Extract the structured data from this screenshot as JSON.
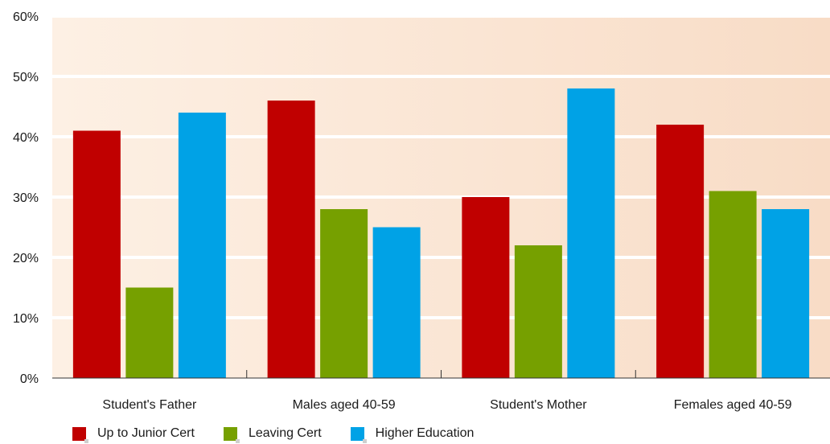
{
  "chart_data": {
    "type": "bar",
    "categories": [
      "Student's Father",
      "Males aged 40-59",
      "Student's Mother",
      "Females aged 40-59"
    ],
    "series": [
      {
        "name": "Up to Junior Cert",
        "values": [
          41,
          46,
          30,
          42
        ],
        "color": "#c00000"
      },
      {
        "name": "Leaving Cert",
        "values": [
          15,
          28,
          22,
          31
        ],
        "color": "#76a000"
      },
      {
        "name": "Higher Education",
        "values": [
          44,
          25,
          48,
          28
        ],
        "color": "#00a2e6"
      }
    ],
    "y_ticks": [
      "0%",
      "10%",
      "20%",
      "30%",
      "40%",
      "50%",
      "60%"
    ],
    "ylim": [
      0,
      60
    ],
    "grid": true,
    "legend_position": "bottom-left",
    "background_colors": [
      "#fdf0e4",
      "#f8dcc6"
    ]
  }
}
